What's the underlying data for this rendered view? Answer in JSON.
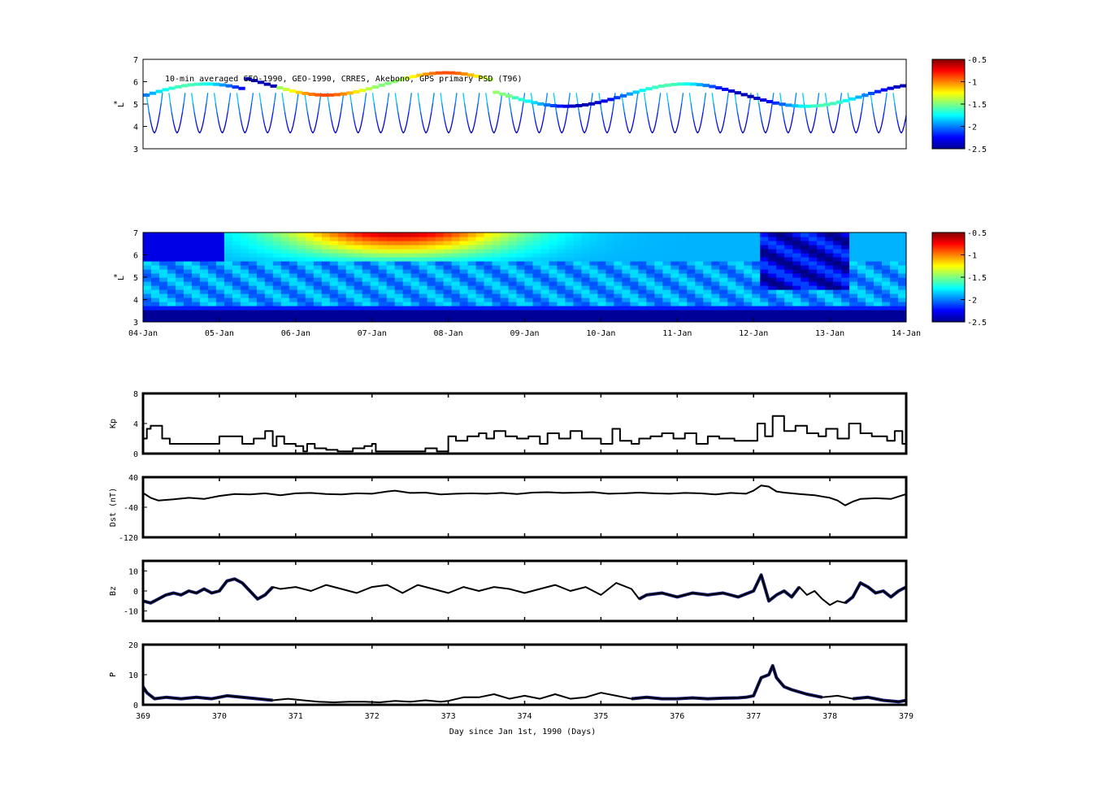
{
  "chart_data": [
    {
      "type": "heatmap",
      "panel": "psd-observations",
      "annotation": "10-min averaged GEO-1990, GEO-1990, CRRES, Akebono, GPS primary PSD (T96)",
      "ylabel_sym": "*",
      "ylabel": "L",
      "ylim": [
        3,
        7
      ],
      "yticks": [
        "3",
        "4",
        "5",
        "6",
        "7"
      ],
      "colorbar": {
        "ticks": [
          "-0.5",
          "-1",
          "-1.5",
          "-2",
          "-2.5"
        ],
        "range": [
          -2.5,
          -0.5
        ],
        "colormap": "jet"
      },
      "passes": 34
    },
    {
      "type": "heatmap",
      "panel": "psd-reanalysis",
      "ylabel_sym": "*",
      "ylabel": "L",
      "ylim": [
        3,
        7
      ],
      "yticks": [
        "3",
        "4",
        "5",
        "6",
        "7"
      ],
      "xticks": [
        "04-Jan",
        "05-Jan",
        "06-Jan",
        "07-Jan",
        "08-Jan",
        "09-Jan",
        "10-Jan",
        "11-Jan",
        "12-Jan",
        "13-Jan",
        "14-Jan"
      ],
      "colorbar": {
        "ticks": [
          "-0.5",
          "-1",
          "-1.5",
          "-2",
          "-2.5"
        ],
        "range": [
          -2.5,
          -0.5
        ],
        "colormap": "jet"
      }
    },
    {
      "type": "line",
      "panel": "kp",
      "ylabel": "Kp",
      "ylim": [
        0,
        8
      ],
      "yticks": [
        "0",
        "4",
        "8"
      ],
      "xlim": [
        369,
        379
      ],
      "series": [
        {
          "x": [
            369.0,
            369.05,
            369.1,
            369.25,
            369.35,
            369.5,
            369.7,
            369.85,
            370.0,
            370.15,
            370.3,
            370.45,
            370.6,
            370.7,
            370.75,
            370.85,
            371.0,
            371.1,
            371.15,
            371.25,
            371.4,
            371.55,
            371.75,
            371.9,
            372.0,
            372.05,
            372.2,
            372.4,
            372.55,
            372.7,
            372.85,
            373.0,
            373.1,
            373.25,
            373.4,
            373.5,
            373.6,
            373.75,
            373.9,
            374.05,
            374.2,
            374.3,
            374.45,
            374.6,
            374.75,
            374.85,
            375.0,
            375.15,
            375.25,
            375.4,
            375.5,
            375.65,
            375.8,
            375.95,
            376.1,
            376.25,
            376.4,
            376.55,
            376.75,
            376.95,
            377.05,
            377.15,
            377.25,
            377.4,
            377.55,
            377.7,
            377.85,
            377.95,
            378.1,
            378.25,
            378.4,
            378.55,
            378.75,
            378.85,
            378.95
          ],
          "y": [
            2.0,
            3.3,
            3.7,
            2.0,
            1.3,
            1.3,
            1.3,
            1.3,
            2.3,
            2.3,
            1.3,
            2.0,
            3.0,
            1.0,
            2.3,
            1.3,
            1.0,
            0.3,
            1.3,
            0.7,
            0.5,
            0.3,
            0.7,
            1.0,
            1.3,
            0.3,
            0.3,
            0.3,
            0.3,
            0.7,
            0.3,
            2.3,
            1.7,
            2.3,
            2.7,
            2.0,
            3.0,
            2.3,
            2.0,
            2.3,
            1.3,
            2.7,
            2.0,
            3.0,
            2.0,
            2.0,
            1.3,
            3.3,
            1.7,
            1.3,
            2.0,
            2.3,
            2.7,
            2.0,
            2.7,
            1.3,
            2.3,
            2.0,
            1.7,
            1.7,
            4.0,
            2.3,
            5.0,
            3.0,
            3.7,
            2.7,
            2.3,
            3.3,
            2.0,
            4.0,
            2.7,
            2.3,
            1.7,
            3.0,
            1.3
          ]
        }
      ]
    },
    {
      "type": "line",
      "panel": "dst",
      "ylabel": "Dst (nT)",
      "ylim": [
        -120,
        40
      ],
      "yticks": [
        "-120",
        "-40",
        "40"
      ],
      "xlim": [
        369,
        379
      ],
      "series": [
        {
          "x": [
            369.0,
            369.1,
            369.2,
            369.4,
            369.6,
            369.8,
            370.0,
            370.2,
            370.4,
            370.6,
            370.8,
            371.0,
            371.2,
            371.4,
            371.6,
            371.8,
            372.0,
            372.2,
            372.3,
            372.5,
            372.7,
            372.9,
            373.1,
            373.3,
            373.5,
            373.7,
            373.9,
            374.1,
            374.3,
            374.5,
            374.7,
            374.9,
            375.1,
            375.3,
            375.5,
            375.7,
            375.9,
            376.1,
            376.3,
            376.5,
            376.7,
            376.9,
            377.0,
            377.1,
            377.2,
            377.3,
            377.4,
            377.6,
            377.8,
            378.0,
            378.1,
            378.2,
            378.3,
            378.4,
            378.6,
            378.8,
            379.0
          ],
          "y": [
            -2,
            -15,
            -22,
            -19,
            -15,
            -18,
            -10,
            -5,
            -6,
            -3,
            -8,
            -3,
            -2,
            -5,
            -6,
            -3,
            -4,
            2,
            4,
            -2,
            -1,
            -6,
            -4,
            -3,
            -4,
            -2,
            -5,
            -1,
            0,
            -2,
            -1,
            0,
            -4,
            -3,
            -1,
            -3,
            -4,
            -2,
            -3,
            -6,
            -2,
            -4,
            4,
            18,
            15,
            2,
            -1,
            -5,
            -8,
            -15,
            -22,
            -35,
            -25,
            -18,
            -16,
            -18,
            -5
          ]
        }
      ]
    },
    {
      "type": "line",
      "panel": "bz",
      "ylabel": "Bz",
      "ylim": [
        -15,
        15
      ],
      "yticks": [
        "-10",
        "0",
        "10"
      ],
      "xlim": [
        369,
        379
      ],
      "series": [
        {
          "x": [
            369.0,
            369.1,
            369.2,
            369.3,
            369.4,
            369.5,
            369.6,
            369.7,
            369.8,
            369.9,
            370.0,
            370.1,
            370.2,
            370.3,
            370.4,
            370.5,
            370.6,
            370.7,
            370.8,
            371.0,
            371.2,
            371.4,
            371.6,
            371.8,
            372.0,
            372.2,
            372.4,
            372.6,
            372.8,
            373.0,
            373.2,
            373.4,
            373.6,
            373.8,
            374.0,
            374.2,
            374.4,
            374.6,
            374.8,
            375.0,
            375.2,
            375.4,
            375.5,
            375.6,
            375.8,
            376.0,
            376.2,
            376.4,
            376.6,
            376.8,
            377.0,
            377.1,
            377.2,
            377.3,
            377.4,
            377.5,
            377.6,
            377.7,
            377.8,
            377.9,
            378.0,
            378.1,
            378.2,
            378.3,
            378.4,
            378.5,
            378.6,
            378.7,
            378.8,
            378.9,
            379.0
          ],
          "y": [
            -5,
            -6,
            -4,
            -2,
            -1,
            -2,
            0,
            -1,
            1,
            -1,
            0,
            5,
            6,
            4,
            0,
            -4,
            -2,
            2,
            1,
            2,
            0,
            3,
            1,
            -1,
            2,
            3,
            -1,
            3,
            1,
            -1,
            2,
            0,
            2,
            1,
            -1,
            1,
            3,
            0,
            2,
            -2,
            4,
            1,
            -4,
            -2,
            -1,
            -3,
            -1,
            -2,
            -1,
            -3,
            0,
            8,
            -5,
            -2,
            0,
            -3,
            2,
            -2,
            0,
            -4,
            -7,
            -5,
            -6,
            -3,
            4,
            2,
            -1,
            0,
            -3,
            0,
            2
          ]
        }
      ],
      "highlight": [
        [
          369.0,
          370.7
        ],
        [
          375.5,
          377.6
        ],
        [
          378.2,
          379.0
        ]
      ]
    },
    {
      "type": "line",
      "panel": "pressure",
      "ylabel": "P",
      "ylim": [
        0,
        20
      ],
      "yticks": [
        "0",
        "10",
        "20"
      ],
      "xlim": [
        369,
        379
      ],
      "xlabel": "Day since Jan 1st, 1990 (Days)",
      "xticks": [
        "369",
        "370",
        "371",
        "372",
        "373",
        "374",
        "375",
        "376",
        "377",
        "378",
        "379"
      ],
      "series": [
        {
          "x": [
            369.0,
            369.05,
            369.15,
            369.3,
            369.5,
            369.7,
            369.9,
            370.1,
            370.3,
            370.5,
            370.7,
            370.9,
            371.1,
            371.3,
            371.5,
            371.7,
            371.9,
            372.1,
            372.3,
            372.5,
            372.7,
            372.9,
            373.0,
            373.2,
            373.4,
            373.6,
            373.8,
            374.0,
            374.2,
            374.4,
            374.6,
            374.8,
            375.0,
            375.2,
            375.4,
            375.6,
            375.8,
            376.0,
            376.2,
            376.4,
            376.6,
            376.8,
            376.9,
            377.0,
            377.1,
            377.2,
            377.25,
            377.3,
            377.4,
            377.5,
            377.7,
            377.9,
            378.1,
            378.3,
            378.5,
            378.7,
            378.9,
            379.0
          ],
          "y": [
            6,
            4,
            2,
            2.5,
            2,
            2.5,
            2,
            3,
            2.5,
            2,
            1.5,
            2,
            1.5,
            1,
            0.8,
            1,
            1,
            0.8,
            1.3,
            1,
            1.5,
            1,
            1.3,
            2.5,
            2.5,
            3.5,
            2,
            3,
            2,
            3.5,
            2,
            2.5,
            4,
            3,
            2,
            2.5,
            2,
            2,
            2.3,
            2,
            2.2,
            2.3,
            2.5,
            3,
            9,
            10,
            13,
            9,
            6,
            5,
            3.5,
            2.5,
            3,
            2,
            2.5,
            1.5,
            1,
            1.5
          ]
        }
      ],
      "highlight": [
        [
          369.0,
          370.7
        ],
        [
          375.3,
          377.9
        ],
        [
          378.2,
          379.0
        ]
      ]
    }
  ]
}
